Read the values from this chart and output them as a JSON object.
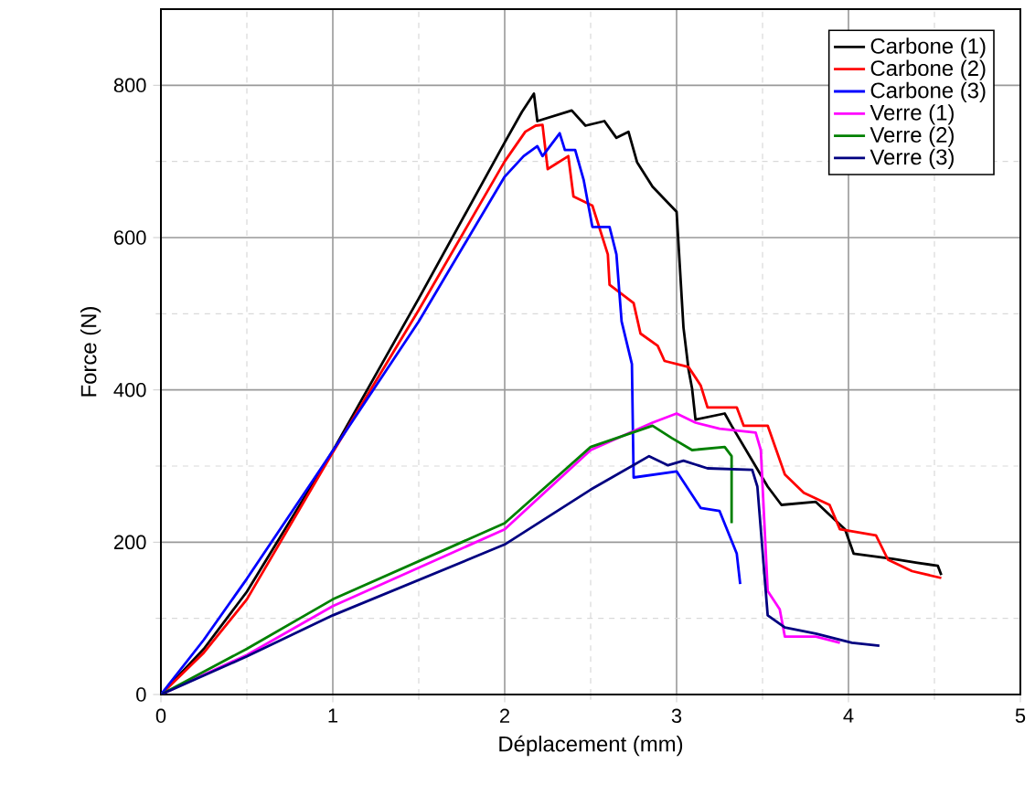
{
  "chart_data": {
    "type": "line",
    "xlabel": "Déplacement (mm)",
    "ylabel": "Force (N)",
    "xlim": [
      0,
      5
    ],
    "ylim": [
      0,
      900
    ],
    "xticks": [
      0,
      1,
      2,
      3,
      4,
      5
    ],
    "yticks": [
      0,
      200,
      400,
      600,
      800
    ],
    "grid": true,
    "legend": "top right",
    "marker": "none",
    "line_style": "solid",
    "series": [
      {
        "name": "Carbone (1)",
        "color": "#000000",
        "x": [
          0,
          0.25,
          0.5,
          1,
          1.5,
          2,
          2.1,
          2.17,
          2.19,
          2.39,
          2.47,
          2.58,
          2.65,
          2.72,
          2.77,
          2.86,
          3.0,
          3.04,
          3.07,
          3.09,
          3.11,
          3.28,
          3.32,
          3.53,
          3.61,
          3.81,
          3.98,
          4.03,
          4.26,
          4.4,
          4.52,
          4.54
        ],
        "values": [
          0,
          60,
          135,
          320,
          520,
          725,
          765,
          789,
          753,
          767,
          747,
          753,
          731,
          739,
          699,
          667,
          634,
          482,
          426,
          402,
          361,
          369,
          353,
          273,
          249,
          253,
          217,
          185,
          178,
          173,
          169,
          157
        ]
      },
      {
        "name": "Carbone (2)",
        "color": "#ff0000",
        "x": [
          0,
          0.25,
          0.5,
          1,
          1.5,
          2,
          2.12,
          2.18,
          2.22,
          2.25,
          2.37,
          2.4,
          2.51,
          2.6,
          2.61,
          2.75,
          2.79,
          2.89,
          2.93,
          3.07,
          3.14,
          3.18,
          3.35,
          3.39,
          3.53,
          3.63,
          3.74,
          3.89,
          3.95,
          4.16,
          4.23,
          4.37,
          4.54
        ],
        "values": [
          0,
          55,
          125,
          318,
          505,
          700,
          739,
          747,
          748,
          690,
          707,
          654,
          642,
          578,
          538,
          514,
          474,
          458,
          438,
          430,
          406,
          377,
          377,
          353,
          353,
          289,
          265,
          249,
          217,
          209,
          177,
          162,
          153
        ]
      },
      {
        "name": "Carbone (3)",
        "color": "#0000ff",
        "x": [
          0,
          0.25,
          0.5,
          1,
          1.5,
          2,
          2.11,
          2.19,
          2.22,
          2.32,
          2.35,
          2.41,
          2.46,
          2.51,
          2.61,
          2.65,
          2.68,
          2.74,
          2.75,
          3.0,
          3.14,
          3.25,
          3.35,
          3.37
        ],
        "values": [
          0,
          72,
          152,
          320,
          490,
          680,
          707,
          720,
          707,
          737,
          715,
          715,
          675,
          614,
          614,
          578,
          490,
          434,
          285,
          293,
          245,
          241,
          185,
          145
        ]
      },
      {
        "name": "Verre (1)",
        "color": "#ff00ff",
        "x": [
          0,
          0.5,
          1,
          2,
          2.5,
          2.86,
          3.0,
          3.11,
          3.25,
          3.46,
          3.49,
          3.53,
          3.6,
          3.63,
          3.81,
          3.95
        ],
        "values": [
          0,
          52,
          116,
          217,
          321,
          357,
          369,
          357,
          349,
          344,
          321,
          136,
          112,
          76,
          76,
          68
        ]
      },
      {
        "name": "Verre (2)",
        "color": "#008000",
        "x": [
          0,
          0.5,
          1,
          2,
          2.5,
          2.86,
          2.97,
          3.09,
          3.28,
          3.32,
          3.32
        ],
        "values": [
          0,
          60,
          125,
          225,
          325,
          353,
          337,
          321,
          325,
          313,
          225
        ]
      },
      {
        "name": "Verre (3)",
        "color": "#000080",
        "x": [
          0,
          0.5,
          1,
          2,
          2.5,
          2.84,
          2.95,
          3.04,
          3.18,
          3.44,
          3.47,
          3.53,
          3.63,
          3.81,
          4.02,
          4.18
        ],
        "values": [
          0,
          50,
          104,
          197,
          269,
          313,
          301,
          307,
          297,
          295,
          273,
          104,
          88,
          80,
          68,
          64
        ]
      }
    ]
  }
}
